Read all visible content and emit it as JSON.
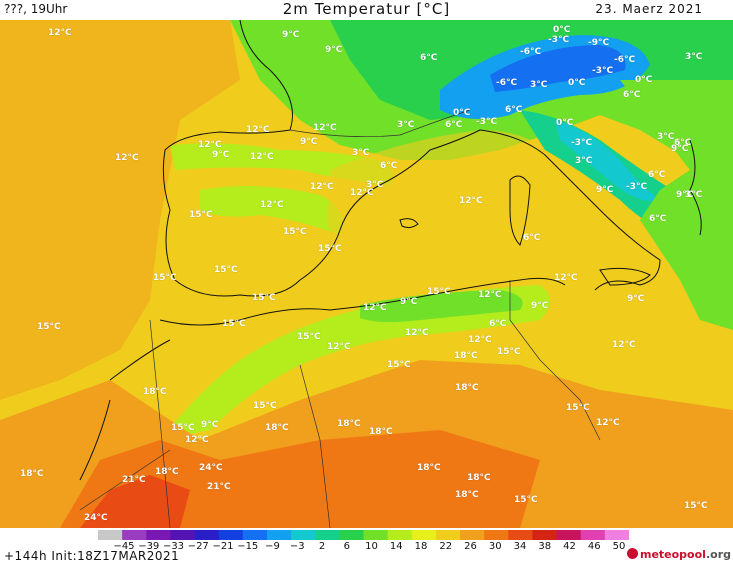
{
  "header": {
    "left": "???, 19Uhr",
    "title": "2m Temperatur [°C]",
    "date": "23. Maerz 2021"
  },
  "footer": {
    "run": "+144h  Init:18Z17MAR2021",
    "brand_main": "meteopool",
    "brand_tld": ".org"
  },
  "legend": {
    "ticks": [
      "−45",
      "−39",
      "−33",
      "−27",
      "−21",
      "−15",
      "−9",
      "−3",
      "2",
      "6",
      "10",
      "14",
      "18",
      "22",
      "26",
      "30",
      "34",
      "38",
      "42",
      "46",
      "50"
    ],
    "colors": [
      "#c8c8c8",
      "#9a3cc0",
      "#7a18b4",
      "#5414b4",
      "#2a1ec8",
      "#1440e0",
      "#1470f0",
      "#14a0f0",
      "#14c8d0",
      "#14d08c",
      "#28d04c",
      "#70e028",
      "#b4ec1c",
      "#e8f01c",
      "#f0cc1c",
      "#f0a01c",
      "#f07814",
      "#e84c14",
      "#d42414",
      "#c8145c",
      "#e040b0",
      "#f080e0"
    ]
  },
  "labels": [
    {
      "t": "12°C"
    },
    {
      "t": "9°C"
    },
    {
      "t": "9°C"
    },
    {
      "t": "6°C"
    },
    {
      "t": "0°C"
    },
    {
      "t": "-3°C"
    },
    {
      "t": "-9°C"
    },
    {
      "t": "-6°C"
    },
    {
      "t": "-6°C"
    },
    {
      "t": "3°C"
    },
    {
      "t": "-3°C"
    },
    {
      "t": "0°C"
    },
    {
      "t": "0°C"
    },
    {
      "t": "6°C"
    },
    {
      "t": "-6°C"
    },
    {
      "t": "3°C"
    },
    {
      "t": "6°C"
    },
    {
      "t": "-3°C"
    },
    {
      "t": "0°C"
    },
    {
      "t": "6°C"
    },
    {
      "t": "0°C"
    },
    {
      "t": "3°C"
    },
    {
      "t": "-3°C"
    },
    {
      "t": "6°C"
    },
    {
      "t": "3°C"
    },
    {
      "t": "9°C"
    },
    {
      "t": "12°C"
    },
    {
      "t": "12°C"
    },
    {
      "t": "12°C"
    },
    {
      "t": "9°C"
    },
    {
      "t": "12°C"
    },
    {
      "t": "9°C"
    },
    {
      "t": "12°C"
    },
    {
      "t": "3°C"
    },
    {
      "t": "6°C"
    },
    {
      "t": "3°C"
    },
    {
      "t": "3°C"
    },
    {
      "t": "9°C"
    },
    {
      "t": "-3°C"
    },
    {
      "t": "3°C"
    },
    {
      "t": "9°C"
    },
    {
      "t": "6°C"
    },
    {
      "t": "12°C"
    },
    {
      "t": "12°C"
    },
    {
      "t": "12°C"
    },
    {
      "t": "12°C"
    },
    {
      "t": "6°C"
    },
    {
      "t": "6°C"
    },
    {
      "t": "15°C"
    },
    {
      "t": "15°C"
    },
    {
      "t": "15°C"
    },
    {
      "t": "12°C"
    },
    {
      "t": "15°C"
    },
    {
      "t": "15°C"
    },
    {
      "t": "15°C"
    },
    {
      "t": "9°C"
    },
    {
      "t": "15°C"
    },
    {
      "t": "12°C"
    },
    {
      "t": "9°C"
    },
    {
      "t": "6°C"
    },
    {
      "t": "9°C"
    },
    {
      "t": "15°C"
    },
    {
      "t": "15°C"
    },
    {
      "t": "12°C"
    },
    {
      "t": "12°C"
    },
    {
      "t": "12°C"
    },
    {
      "t": "12°C"
    },
    {
      "t": "18°C"
    },
    {
      "t": "15°C"
    },
    {
      "t": "15°C"
    },
    {
      "t": "12°C"
    },
    {
      "t": "15°C"
    },
    {
      "t": "18°C"
    },
    {
      "t": "18°C"
    },
    {
      "t": "9°C"
    },
    {
      "t": "15°C"
    },
    {
      "t": "15°C"
    },
    {
      "t": "12°C"
    },
    {
      "t": "18°C"
    },
    {
      "t": "18°C"
    },
    {
      "t": "18°C"
    },
    {
      "t": "12°C"
    },
    {
      "t": "15°C"
    },
    {
      "t": "18°C"
    },
    {
      "t": "24°C"
    },
    {
      "t": "18°C"
    },
    {
      "t": "21°C"
    },
    {
      "t": "21°C"
    },
    {
      "t": "18°C"
    },
    {
      "t": "18°C"
    },
    {
      "t": "15°C"
    },
    {
      "t": "18°C"
    },
    {
      "t": "24°C"
    },
    {
      "t": "15°C"
    }
  ]
}
